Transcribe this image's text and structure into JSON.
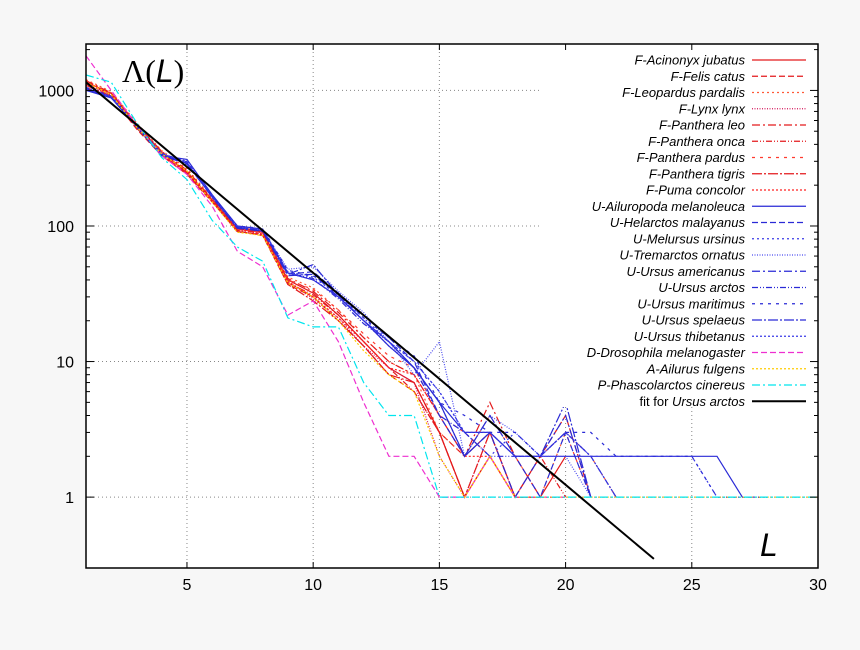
{
  "chart_data": {
    "type": "line",
    "title": "",
    "ylabel_parts": {
      "sym": "Λ(",
      "var": "L",
      "close": ")"
    },
    "xlabel": "L",
    "xlim": [
      1,
      30
    ],
    "ylim": [
      0.3,
      2200
    ],
    "yscale": "log",
    "grid": true,
    "legend_position": "top-right",
    "xticks": [
      5,
      10,
      15,
      20,
      25,
      30
    ],
    "yticks": [
      1,
      10,
      100,
      1000
    ],
    "xtick_labels": [
      "5",
      "10",
      "15",
      "20",
      "25",
      "30"
    ],
    "ytick_labels": [
      "1",
      "10",
      "100",
      "1000"
    ],
    "legend_items": [
      {
        "prefix": "F-",
        "name": "Acinonyx jubatus",
        "suffix": "",
        "color": "#e41a1c",
        "dash": ""
      },
      {
        "prefix": "F-",
        "name": "Felis catus",
        "suffix": "",
        "color": "#e41a1c",
        "dash": "6,3"
      },
      {
        "prefix": "F-",
        "name": "Leopardus pardalis",
        "suffix": "",
        "color": "#ff5a36",
        "dash": "2,3"
      },
      {
        "prefix": "F-",
        "name": "Lynx lynx",
        "suffix": "",
        "color": "#d4145a",
        "dash": "1,1.5"
      },
      {
        "prefix": "F-",
        "name": "Panthera leo",
        "suffix": "",
        "color": "#e41a1c",
        "dash": "8,3,2,3"
      },
      {
        "prefix": "F-",
        "name": "Panthera onca",
        "suffix": "",
        "color": "#e41a1c",
        "dash": "6,2,1,2,1,2"
      },
      {
        "prefix": "F-",
        "name": "Panthera pardus",
        "suffix": "",
        "color": "#ff3b2f",
        "dash": "3,5"
      },
      {
        "prefix": "F-",
        "name": "Panthera tigris",
        "suffix": "",
        "color": "#e41a1c",
        "dash": "10,2,2,2"
      },
      {
        "prefix": "F-",
        "name": "Puma concolor",
        "suffix": "",
        "color": "#ff2020",
        "dash": "2,2"
      },
      {
        "prefix": "U-",
        "name": "Ailuropoda melanoleuca",
        "suffix": "",
        "color": "#2a2ad6",
        "dash": ""
      },
      {
        "prefix": "U-",
        "name": "Helarctos malayanus",
        "suffix": "",
        "color": "#2a2ad6",
        "dash": "6,3"
      },
      {
        "prefix": "U-",
        "name": "Melursus ursinus",
        "suffix": "",
        "color": "#3a3ae6",
        "dash": "2,3"
      },
      {
        "prefix": "U-",
        "name": "Tremarctos ornatus",
        "suffix": "",
        "color": "#4a4af0",
        "dash": "1,1.5"
      },
      {
        "prefix": "U-",
        "name": "Ursus americanus",
        "suffix": "",
        "color": "#2a2ad6",
        "dash": "8,3,2,3"
      },
      {
        "prefix": "U-",
        "name": "Ursus arctos",
        "suffix": "",
        "color": "#2a2ad6",
        "dash": "6,2,1,2,1,2"
      },
      {
        "prefix": "U-",
        "name": "Ursus maritimus",
        "suffix": "",
        "color": "#2a2ad6",
        "dash": "3,5"
      },
      {
        "prefix": "U-",
        "name": "Ursus spelaeus",
        "suffix": "",
        "color": "#2a2ad6",
        "dash": "10,2,2,2"
      },
      {
        "prefix": "U-",
        "name": "Ursus thibetanus",
        "suffix": "",
        "color": "#3a3ae6",
        "dash": "2,2"
      },
      {
        "prefix": "D-",
        "name": "Drosophila melanogaster",
        "suffix": "",
        "color": "#ee2fd0",
        "dash": "6,3"
      },
      {
        "prefix": "A-",
        "name": "Ailurus fulgens",
        "suffix": "",
        "color": "#ffcc00",
        "dash": "2,2"
      },
      {
        "prefix": "P-",
        "name": "Phascolarctos cinereus",
        "suffix": "",
        "color": "#00e5ee",
        "dash": "8,3,2,3"
      },
      {
        "prefix": "fit for ",
        "name": "Ursus arctos",
        "suffix": "",
        "color": "#000000",
        "dash": ""
      }
    ],
    "series": [
      {
        "color": "#e41a1c",
        "dash": "",
        "x": [
          1,
          2,
          3,
          4,
          5,
          6,
          7,
          8,
          9,
          10,
          11,
          12,
          13,
          14,
          15,
          16,
          17,
          18,
          19,
          20
        ],
        "y": [
          1150,
          950,
          560,
          350,
          250,
          155,
          95,
          90,
          40,
          32,
          22,
          14,
          9,
          7,
          3,
          1,
          2,
          1,
          1,
          2
        ]
      },
      {
        "color": "#e41a1c",
        "dash": "6,3",
        "x": [
          1,
          2,
          3,
          4,
          5,
          6,
          7,
          8,
          9,
          10,
          11,
          12,
          13,
          14,
          15,
          16,
          17,
          18,
          19,
          20,
          21
        ],
        "y": [
          1050,
          900,
          520,
          330,
          240,
          150,
          92,
          85,
          37,
          30,
          20,
          13,
          8,
          6,
          3,
          2,
          3,
          1,
          2,
          4,
          1
        ]
      },
      {
        "color": "#ff5a36",
        "dash": "2,3",
        "x": [
          1,
          2,
          3,
          4,
          5,
          6,
          7,
          8,
          9,
          10,
          11,
          12,
          13,
          14,
          15,
          16,
          17,
          18,
          19,
          20,
          21,
          22
        ],
        "y": [
          1200,
          980,
          580,
          360,
          265,
          160,
          98,
          92,
          42,
          35,
          24,
          15,
          10,
          8,
          3,
          2,
          4,
          2,
          1,
          3,
          2,
          1
        ]
      },
      {
        "color": "#d4145a",
        "dash": "1,1.5",
        "x": [
          1,
          2,
          3,
          4,
          5,
          6,
          7,
          8,
          9,
          10,
          11,
          12,
          13,
          14,
          15,
          16,
          17,
          18
        ],
        "y": [
          1100,
          920,
          540,
          340,
          255,
          152,
          90,
          88,
          39,
          29,
          21,
          13,
          9,
          7,
          2,
          1,
          3,
          1
        ]
      },
      {
        "color": "#e41a1c",
        "dash": "8,3,2,3",
        "x": [
          1,
          2,
          3,
          4,
          5,
          6,
          7,
          8,
          9,
          10,
          11,
          12,
          13,
          14,
          15,
          16,
          17,
          18,
          19
        ],
        "y": [
          1180,
          960,
          565,
          355,
          258,
          158,
          96,
          91,
          41,
          33,
          23,
          15,
          10,
          8,
          4,
          2,
          5,
          2,
          1
        ]
      },
      {
        "color": "#e41a1c",
        "dash": "6,2,1,2,1,2",
        "x": [
          1,
          2,
          3,
          4,
          5,
          6,
          7,
          8,
          9,
          10,
          11,
          12,
          13,
          14,
          15,
          16,
          17,
          18,
          19,
          20
        ],
        "y": [
          1120,
          940,
          550,
          345,
          248,
          154,
          93,
          89,
          38,
          31,
          22,
          14,
          9,
          6,
          3,
          1,
          2,
          1,
          2,
          1
        ]
      },
      {
        "color": "#ff3b2f",
        "dash": "3,5",
        "x": [
          1,
          2,
          3,
          4,
          5,
          6,
          7,
          8,
          9,
          10,
          11,
          12,
          13,
          14,
          15,
          16,
          17,
          18,
          19,
          20,
          21
        ],
        "y": [
          1160,
          945,
          555,
          348,
          252,
          156,
          94,
          90,
          40,
          34,
          24,
          16,
          11,
          9,
          4,
          3,
          2,
          1,
          2,
          3,
          1
        ]
      },
      {
        "color": "#e41a1c",
        "dash": "10,2,2,2",
        "x": [
          1,
          2,
          3,
          4,
          5,
          6,
          7,
          8,
          9,
          10,
          11,
          12,
          13,
          14,
          15,
          16,
          17,
          18,
          19
        ],
        "y": [
          1090,
          910,
          530,
          335,
          245,
          151,
          91,
          86,
          37,
          28,
          20,
          13,
          8,
          7,
          3,
          1,
          3,
          1,
          1
        ]
      },
      {
        "color": "#ff2020",
        "dash": "2,2",
        "x": [
          1,
          2,
          3,
          4,
          5,
          6,
          7,
          8,
          9,
          10,
          11,
          12,
          13,
          14,
          15,
          16,
          17,
          18,
          19,
          20
        ],
        "y": [
          1140,
          930,
          545,
          342,
          250,
          153,
          95,
          87,
          39,
          30,
          21,
          14,
          9,
          8,
          4,
          2,
          2,
          1,
          1,
          1
        ]
      },
      {
        "color": "#2a2ad6",
        "dash": "",
        "x": [
          1,
          2,
          3,
          4,
          5,
          6,
          7,
          8,
          9,
          10,
          11,
          12,
          13,
          14,
          15,
          16,
          17,
          18,
          19,
          20,
          21,
          22,
          23,
          24,
          25,
          26,
          27
        ],
        "y": [
          1000,
          880,
          540,
          330,
          310,
          170,
          100,
          95,
          45,
          40,
          30,
          20,
          14,
          9,
          5,
          3,
          3,
          2,
          2,
          2,
          2,
          2,
          2,
          2,
          2,
          2,
          1
        ]
      },
      {
        "color": "#2a2ad6",
        "dash": "6,3",
        "x": [
          1,
          2,
          3,
          4,
          5,
          6,
          7,
          8,
          9,
          10,
          11,
          12,
          13,
          14,
          15,
          16,
          17,
          18,
          19,
          20,
          21
        ],
        "y": [
          1020,
          890,
          545,
          335,
          290,
          165,
          98,
          92,
          44,
          46,
          32,
          22,
          15,
          10,
          4,
          2,
          3,
          2,
          1,
          3,
          1
        ]
      },
      {
        "color": "#3a3ae6",
        "dash": "2,3",
        "x": [
          1,
          2,
          3,
          4,
          5,
          6,
          7,
          8,
          9,
          10,
          11,
          12,
          13,
          14,
          15,
          16,
          17,
          18,
          19,
          20,
          21,
          22,
          23,
          24,
          25,
          26,
          27,
          28
        ],
        "y": [
          1040,
          900,
          550,
          340,
          300,
          168,
          99,
          94,
          46,
          42,
          31,
          21,
          14,
          10,
          6,
          3,
          2,
          3,
          2,
          3,
          2,
          2,
          2,
          2,
          2,
          1,
          1,
          1
        ]
      },
      {
        "color": "#4a4af0",
        "dash": "1,1.5",
        "x": [
          1,
          2,
          3,
          4,
          5,
          6,
          7,
          8,
          9,
          10,
          11,
          12,
          13,
          14,
          15,
          16,
          17,
          18,
          19,
          20,
          21
        ],
        "y": [
          1060,
          905,
          555,
          345,
          295,
          162,
          97,
          93,
          48,
          50,
          33,
          23,
          14,
          8,
          14,
          2,
          4,
          3,
          2,
          2,
          1
        ]
      },
      {
        "color": "#2a2ad6",
        "dash": "8,3,2,3",
        "x": [
          1,
          2,
          3,
          4,
          5,
          6,
          7,
          8,
          9,
          10,
          11,
          12,
          13,
          14,
          15,
          16,
          17,
          18,
          19,
          20,
          21
        ],
        "y": [
          1010,
          885,
          542,
          332,
          285,
          166,
          97,
          91,
          43,
          44,
          30,
          20,
          13,
          9,
          5,
          2,
          3,
          1,
          2,
          4,
          1
        ]
      },
      {
        "color": "#2a2ad6",
        "dash": "6,2,1,2,1,2",
        "x": [
          1,
          2,
          3,
          4,
          5,
          6,
          7,
          8,
          9,
          10,
          11,
          12,
          13,
          14,
          15,
          16,
          17,
          18,
          19,
          20,
          21,
          22
        ],
        "y": [
          1030,
          895,
          548,
          338,
          292,
          164,
          98,
          93,
          45,
          41,
          29,
          19,
          14,
          9,
          4,
          3,
          2,
          2,
          2,
          3,
          2,
          1
        ]
      },
      {
        "color": "#2a2ad6",
        "dash": "3,5",
        "x": [
          1,
          2,
          3,
          4,
          5,
          6,
          7,
          8,
          9,
          10,
          11,
          12,
          13,
          14,
          15,
          16,
          17,
          18,
          19,
          20,
          21,
          22,
          23,
          24,
          25,
          26,
          27,
          28
        ],
        "y": [
          1050,
          910,
          552,
          342,
          298,
          167,
          100,
          96,
          47,
          43,
          32,
          21,
          15,
          11,
          5,
          4,
          3,
          3,
          2,
          3,
          3,
          2,
          2,
          2,
          2,
          1,
          1,
          1
        ]
      },
      {
        "color": "#2a2ad6",
        "dash": "10,2,2,2",
        "x": [
          1,
          2,
          3,
          4,
          5,
          6,
          7,
          8,
          9,
          10,
          11,
          12,
          13,
          14,
          15,
          16,
          17,
          18,
          19,
          20,
          21
        ],
        "y": [
          1015,
          888,
          546,
          336,
          288,
          163,
          96,
          92,
          44,
          52,
          31,
          20,
          13,
          9,
          5,
          2,
          4,
          2,
          2,
          5,
          1
        ]
      },
      {
        "color": "#3a3ae6",
        "dash": "2,2",
        "x": [
          1,
          2,
          3,
          4,
          5,
          6,
          7,
          8,
          9,
          10,
          11,
          12,
          13,
          14,
          15,
          16,
          17,
          18,
          19,
          20,
          21,
          22
        ],
        "y": [
          1025,
          892,
          549,
          339,
          294,
          165,
          99,
          94,
          45,
          40,
          30,
          20,
          14,
          10,
          6,
          3,
          3,
          2,
          2,
          3,
          2,
          1
        ]
      },
      {
        "color": "#ee2fd0",
        "dash": "6,3",
        "x": [
          1,
          2,
          3,
          4,
          5,
          6,
          7,
          8,
          9,
          10,
          11,
          12,
          13,
          14,
          15,
          16,
          17,
          18,
          19,
          20
        ],
        "y": [
          1800,
          1000,
          560,
          330,
          240,
          140,
          65,
          50,
          22,
          28,
          14,
          5,
          2,
          2,
          1,
          1,
          2,
          1,
          1,
          1
        ]
      },
      {
        "color": "#ffcc00",
        "dash": "2,2",
        "x": [
          1,
          2,
          3,
          4,
          5,
          6,
          7,
          8,
          9,
          10,
          11,
          12,
          13,
          14,
          15,
          16,
          17,
          18,
          19,
          20,
          21,
          22,
          23,
          24,
          25,
          26,
          27,
          28,
          29,
          30
        ],
        "y": [
          1150,
          930,
          540,
          340,
          255,
          150,
          90,
          85,
          38,
          30,
          20,
          12,
          8,
          6,
          2,
          1,
          2,
          1,
          1,
          1,
          1,
          1,
          1,
          1,
          1,
          1,
          1,
          1,
          1,
          1
        ]
      },
      {
        "color": "#00e5ee",
        "dash": "8,3,2,3",
        "x": [
          1,
          2,
          3,
          4,
          5,
          6,
          7,
          8,
          9,
          10,
          11,
          12,
          13,
          14,
          15,
          16,
          17,
          18,
          19,
          20,
          21,
          22,
          23,
          24,
          25,
          26,
          27,
          28,
          29,
          30
        ],
        "y": [
          1300,
          1150,
          580,
          320,
          220,
          110,
          70,
          55,
          21,
          18,
          18,
          7,
          4,
          4,
          1,
          1,
          1,
          1,
          1,
          1,
          1,
          1,
          1,
          1,
          1,
          1,
          1,
          1,
          1,
          1
        ]
      },
      {
        "color": "#000000",
        "dash": "",
        "width": 2,
        "x": [
          1,
          23.5
        ],
        "y": [
          1150,
          0.35
        ]
      }
    ]
  }
}
